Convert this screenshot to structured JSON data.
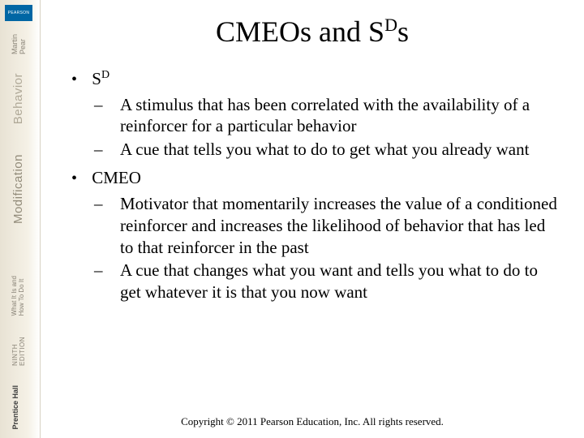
{
  "sidebar": {
    "logo_text": "PEARSON",
    "authors": "Martin\nPear",
    "title_word1": "Behavior",
    "title_word2": "Modification",
    "subtitle": "What It Is and\nHow To Do It",
    "edition": "NINTH\nEDITION",
    "publisher": "Prentice Hall"
  },
  "title": {
    "pre": "CMEOs and S",
    "sup": "D",
    "post": "s"
  },
  "bullets": [
    {
      "heading_pre": "S",
      "heading_sup": "D",
      "subs": [
        "A stimulus that has been correlated with the availability of a reinforcer for a particular behavior",
        "A cue that tells you what to do to get what you already want"
      ]
    },
    {
      "heading_pre": "CMEO",
      "heading_sup": "",
      "subs": [
        "Motivator that momentarily increases the value of a conditioned reinforcer and increases the likelihood of behavior that has led to that reinforcer in the past",
        "A cue that changes what you want and tells you what to do to get whatever it is that you now want"
      ]
    }
  ],
  "footer": "Copyright © 2011 Pearson Education, Inc. All rights reserved."
}
